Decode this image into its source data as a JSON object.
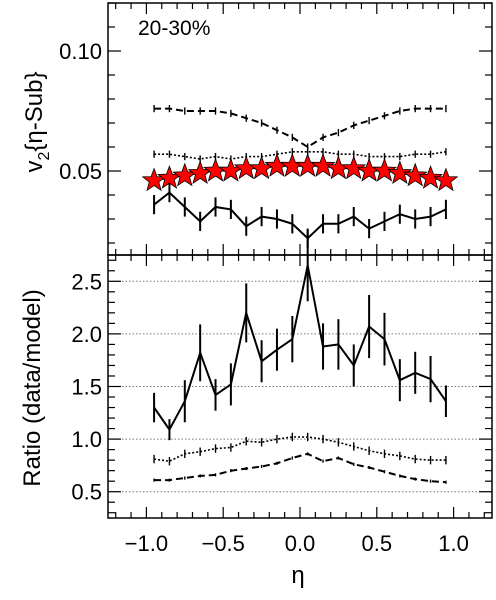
{
  "chart_data": [
    {
      "type": "line",
      "panel": "top",
      "annotation": "20-30%",
      "ylabel_main": "v",
      "ylabel_sub": "2",
      "ylabel_rest": "{η-Sub}",
      "xlim": [
        -1.25,
        1.25
      ],
      "ylim": [
        0.015,
        0.12
      ],
      "yticks": [
        0.05,
        0.1
      ],
      "ytick_labels": [
        "0.05",
        "0.10"
      ],
      "x": [
        -0.95,
        -0.85,
        -0.75,
        -0.65,
        -0.55,
        -0.45,
        -0.35,
        -0.25,
        -0.15,
        -0.05,
        0.05,
        0.15,
        0.25,
        0.35,
        0.45,
        0.55,
        0.65,
        0.75,
        0.85,
        0.95
      ],
      "series": [
        {
          "style": "dashed",
          "values": [
            0.076,
            0.076,
            0.075,
            0.075,
            0.075,
            0.074,
            0.072,
            0.07,
            0.067,
            0.064,
            0.06,
            0.064,
            0.066,
            0.069,
            0.071,
            0.073,
            0.075,
            0.076,
            0.076,
            0.076
          ],
          "errors": [
            0.0015,
            0.0015,
            0.0015,
            0.0015,
            0.0015,
            0.0015,
            0.0015,
            0.0015,
            0.0015,
            0.0015,
            0.0015,
            0.0015,
            0.0015,
            0.0015,
            0.0015,
            0.0015,
            0.0015,
            0.0015,
            0.0015,
            0.0015
          ]
        },
        {
          "style": "dotted",
          "values": [
            0.057,
            0.057,
            0.056,
            0.055,
            0.056,
            0.055,
            0.056,
            0.056,
            0.057,
            0.058,
            0.058,
            0.058,
            0.057,
            0.057,
            0.056,
            0.056,
            0.056,
            0.057,
            0.057,
            0.058
          ],
          "errors": [
            0.0015,
            0.0015,
            0.0015,
            0.0015,
            0.0015,
            0.0015,
            0.0015,
            0.0015,
            0.0015,
            0.0015,
            0.0015,
            0.0015,
            0.0015,
            0.0015,
            0.0015,
            0.0015,
            0.0015,
            0.0015,
            0.0015,
            0.0015
          ]
        },
        {
          "style": "stars",
          "values": [
            0.046,
            0.047,
            0.048,
            0.049,
            0.05,
            0.05,
            0.051,
            0.051,
            0.052,
            0.052,
            0.052,
            0.052,
            0.051,
            0.051,
            0.05,
            0.05,
            0.049,
            0.048,
            0.047,
            0.046
          ]
        },
        {
          "style": "solid",
          "values": [
            0.036,
            0.041,
            0.035,
            0.029,
            0.035,
            0.034,
            0.027,
            0.031,
            0.03,
            0.028,
            0.022,
            0.028,
            0.028,
            0.031,
            0.026,
            0.029,
            0.032,
            0.03,
            0.031,
            0.034
          ],
          "errors": [
            0.004,
            0.004,
            0.004,
            0.004,
            0.004,
            0.004,
            0.004,
            0.004,
            0.004,
            0.004,
            0.004,
            0.004,
            0.004,
            0.004,
            0.004,
            0.004,
            0.004,
            0.004,
            0.004,
            0.004
          ]
        }
      ]
    },
    {
      "type": "line",
      "panel": "bottom",
      "ylabel": "Ratio (data/model)",
      "xlabel": "η",
      "xlim": [
        -1.25,
        1.25
      ],
      "ylim": [
        0.25,
        2.75
      ],
      "yticks": [
        0.5,
        1.0,
        1.5,
        2.0,
        2.5
      ],
      "ytick_labels": [
        "0.5",
        "1.0",
        "1.5",
        "2.0",
        "2.5"
      ],
      "xticks": [
        -1.0,
        -0.5,
        0.0,
        0.5,
        1.0
      ],
      "xtick_labels": [
        "−1.0",
        "−0.5",
        "0.0",
        "0.5",
        "1.0"
      ],
      "grid_lines": [
        0.5,
        1.0,
        1.5,
        2.0,
        2.5
      ],
      "x": [
        -0.95,
        -0.85,
        -0.75,
        -0.65,
        -0.55,
        -0.45,
        -0.35,
        -0.25,
        -0.15,
        -0.05,
        0.05,
        0.15,
        0.25,
        0.35,
        0.45,
        0.55,
        0.65,
        0.75,
        0.85,
        0.95
      ],
      "series": [
        {
          "style": "solid",
          "values": [
            1.3,
            1.09,
            1.36,
            1.82,
            1.42,
            1.52,
            2.2,
            1.74,
            1.85,
            1.95,
            2.65,
            1.88,
            1.9,
            1.7,
            2.07,
            1.95,
            1.56,
            1.63,
            1.57,
            1.36
          ],
          "errors": [
            0.14,
            0.1,
            0.2,
            0.27,
            0.15,
            0.2,
            0.28,
            0.2,
            0.2,
            0.22,
            0.34,
            0.22,
            0.24,
            0.2,
            0.3,
            0.25,
            0.2,
            0.2,
            0.22,
            0.15
          ]
        },
        {
          "style": "dotted",
          "values": [
            0.81,
            0.79,
            0.86,
            0.88,
            0.91,
            0.92,
            0.98,
            0.97,
            1.0,
            1.02,
            1.02,
            1.0,
            0.97,
            0.93,
            0.89,
            0.86,
            0.84,
            0.81,
            0.8,
            0.8
          ],
          "errors": [
            0.04,
            0.04,
            0.04,
            0.04,
            0.04,
            0.04,
            0.04,
            0.04,
            0.04,
            0.04,
            0.04,
            0.04,
            0.04,
            0.04,
            0.04,
            0.04,
            0.04,
            0.04,
            0.04,
            0.04
          ]
        },
        {
          "style": "dashed",
          "values": [
            0.61,
            0.61,
            0.63,
            0.65,
            0.66,
            0.7,
            0.72,
            0.74,
            0.77,
            0.82,
            0.86,
            0.79,
            0.82,
            0.76,
            0.73,
            0.69,
            0.65,
            0.62,
            0.6,
            0.59
          ],
          "errors": [
            0.015,
            0.015,
            0.015,
            0.015,
            0.015,
            0.015,
            0.015,
            0.015,
            0.015,
            0.015,
            0.015,
            0.015,
            0.015,
            0.015,
            0.015,
            0.015,
            0.015,
            0.015,
            0.015,
            0.015
          ]
        }
      ]
    }
  ]
}
